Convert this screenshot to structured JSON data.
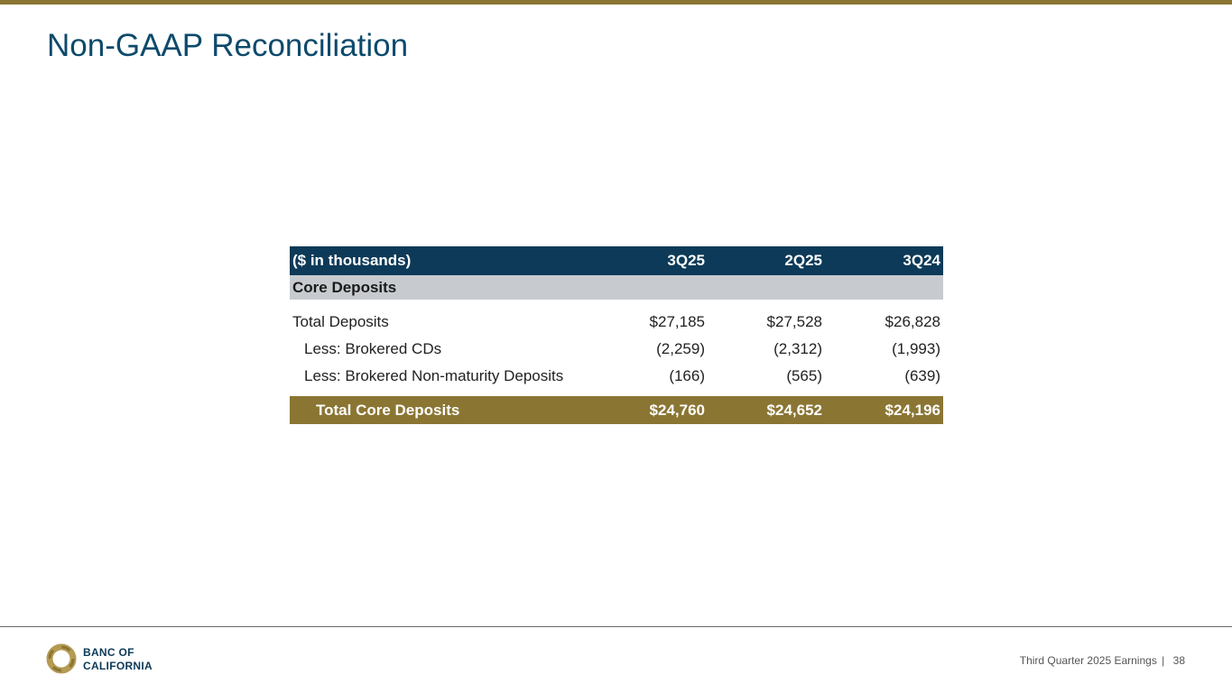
{
  "page": {
    "title": "Non-GAAP Reconciliation"
  },
  "table": {
    "header": [
      "($ in thousands)",
      "3Q25",
      "2Q25",
      "3Q24"
    ],
    "section_label": "Core Deposits",
    "rows": [
      {
        "label": "Total Deposits",
        "values": [
          "$27,185",
          "$27,528",
          "$26,828"
        ]
      },
      {
        "label": "Less: Brokered CDs",
        "values": [
          "(2,259)",
          "(2,312)",
          "(1,993)"
        ]
      },
      {
        "label": "Less: Brokered Non-maturity Deposits",
        "values": [
          "(166)",
          "(565)",
          "(639)"
        ]
      }
    ],
    "total": {
      "label": "Total Core Deposits",
      "values": [
        "$24,760",
        "$24,652",
        "$24,196"
      ]
    }
  },
  "footer": {
    "logo_line1": "BANC OF",
    "logo_line2": "CALIFORNIA",
    "caption": "Third Quarter 2025 Earnings",
    "separator": "|",
    "page_number": "38"
  },
  "colors": {
    "accent_gold": "#8a7533",
    "header_navy": "#0d3a58",
    "title_blue": "#0d4a6b",
    "section_gray": "#c7cbd0"
  }
}
